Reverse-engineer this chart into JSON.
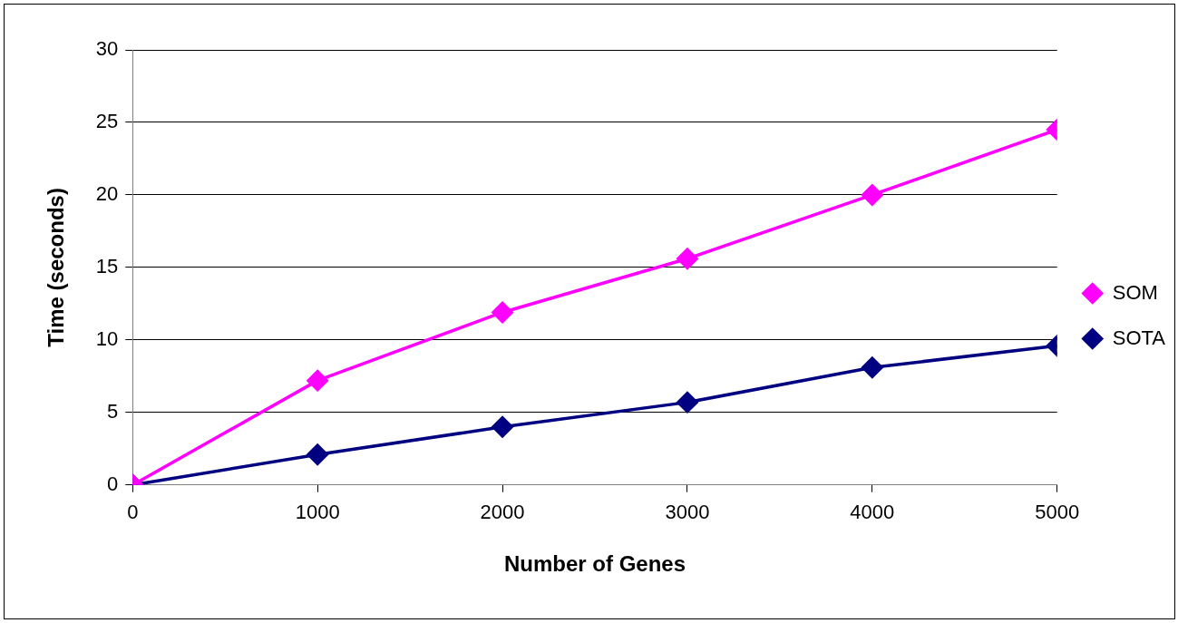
{
  "chart_data": {
    "type": "line",
    "xlabel": "Number of Genes",
    "ylabel": "Time (seconds)",
    "x": [
      0,
      1000,
      2000,
      3000,
      4000,
      5000
    ],
    "series": [
      {
        "name": "SOM",
        "color": "#ff00ff",
        "values": [
          0,
          7.2,
          11.9,
          15.6,
          20.0,
          24.5
        ]
      },
      {
        "name": "SOTA",
        "color": "#000080",
        "values": [
          0,
          2.1,
          4.0,
          5.7,
          8.1,
          9.6
        ]
      }
    ],
    "xlim": [
      0,
      5000
    ],
    "xticks": [
      0,
      1000,
      2000,
      3000,
      4000,
      5000
    ],
    "ylim": [
      0,
      30
    ],
    "yticks": [
      0,
      5,
      10,
      15,
      20,
      25,
      30
    ],
    "grid": "y",
    "legend": "right",
    "marker": "diamond",
    "line_style": "solid"
  }
}
